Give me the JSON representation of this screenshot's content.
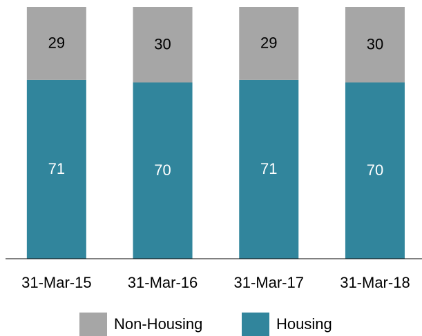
{
  "chart_data": {
    "type": "stacked_bar",
    "categories": [
      "31-Mar-15",
      "31-Mar-16",
      "31-Mar-17",
      "31-Mar-18"
    ],
    "series": [
      {
        "name": "Non-Housing",
        "color": "#a6a6a6",
        "label_color": "#000000",
        "values": [
          29,
          30,
          29,
          30
        ]
      },
      {
        "name": "Housing",
        "color": "#31859c",
        "label_color": "#ffffff",
        "values": [
          71,
          70,
          71,
          70
        ]
      }
    ],
    "ylim": [
      0,
      100
    ]
  }
}
